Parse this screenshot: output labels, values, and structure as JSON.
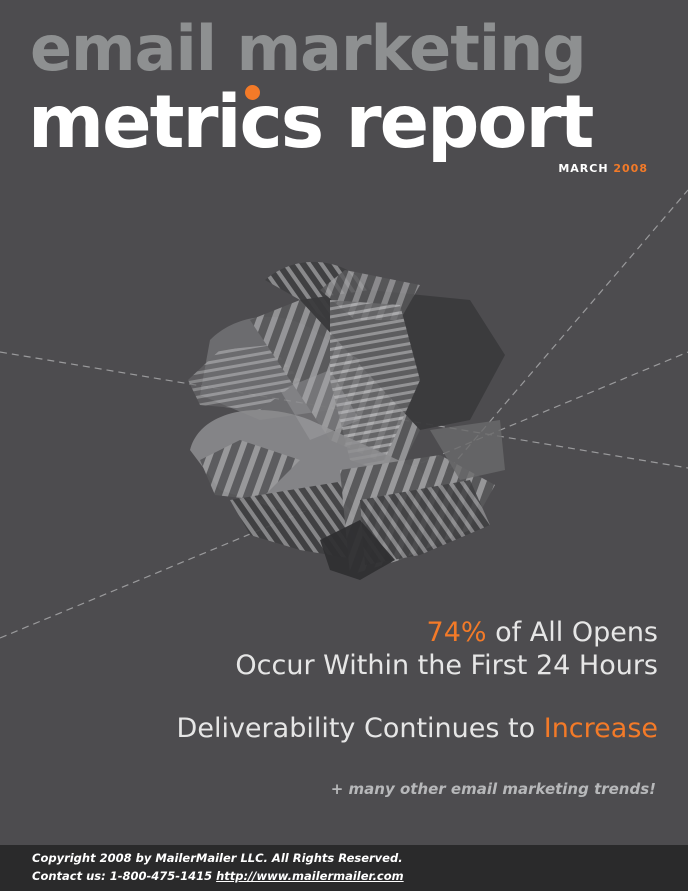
{
  "cover": {
    "title_line1": "email marketing",
    "title_line2": "metrics report",
    "issue_month": "MARCH",
    "issue_year": "2008",
    "headline1_pct": "74%",
    "headline1_rest": "of All Opens",
    "headline1_line2": "Occur Within the First 24 Hours",
    "headline2_pre": "Deliverability Continues to",
    "headline2_accent": "Increase",
    "tagline": "+ many other email marketing trends!"
  },
  "footer": {
    "copyright": "Copyright 2008 by MailerMailer LLC. All Rights Reserved.",
    "contact_prefix": "Contact us: 1-800-475-1415",
    "url": "http://www.mailermailer.com"
  },
  "colors": {
    "accent": "#f37a28",
    "background": "#4d4c4f",
    "footer_bg": "#2a2a2b"
  }
}
